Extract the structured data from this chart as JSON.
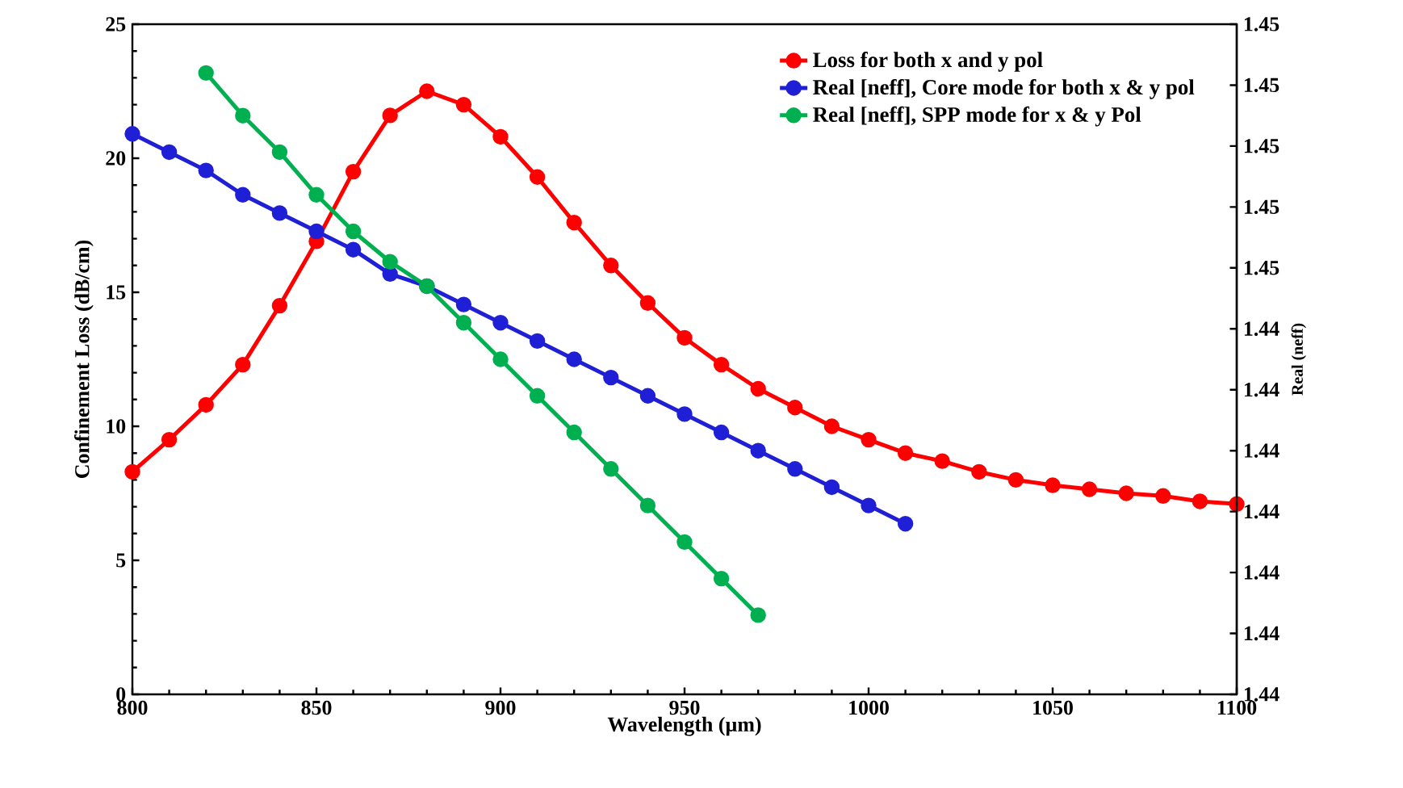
{
  "chart_data": {
    "type": "line",
    "xlabel": "Wavelength (µm)",
    "ylabel": "Confinement Loss (dB/cm)",
    "y2label": "Real (neff)",
    "xlim": [
      800,
      1100
    ],
    "xticks": [
      800,
      850,
      900,
      950,
      1000,
      1050,
      1100
    ],
    "ylim": [
      0,
      25
    ],
    "yticks": [
      0,
      5,
      10,
      15,
      20,
      25
    ],
    "y2lim": [
      1.438,
      1.449
    ],
    "y2ticks": [
      {
        "value": 1.438,
        "label": "1.44"
      },
      {
        "value": 1.439,
        "label": "1.44"
      },
      {
        "value": 1.44,
        "label": "1.44"
      },
      {
        "value": 1.441,
        "label": "1.44"
      },
      {
        "value": 1.442,
        "label": "1.44"
      },
      {
        "value": 1.443,
        "label": "1.44"
      },
      {
        "value": 1.444,
        "label": "1.44"
      },
      {
        "value": 1.445,
        "label": "1.45"
      },
      {
        "value": 1.446,
        "label": "1.45"
      },
      {
        "value": 1.447,
        "label": "1.45"
      },
      {
        "value": 1.448,
        "label": "1.45"
      },
      {
        "value": 1.449,
        "label": "1.45"
      }
    ],
    "marker": "circle",
    "line_style": "solid",
    "legend": "top right",
    "series": [
      {
        "name": "Loss for both x and y pol",
        "color": "#ff0000",
        "x": [
          800,
          810,
          820,
          830,
          840,
          850,
          860,
          870,
          880,
          890,
          900,
          910,
          920,
          930,
          940,
          950,
          960,
          970,
          980,
          990,
          1000,
          1010,
          1020,
          1030,
          1040,
          1050,
          1060,
          1070,
          1080,
          1090,
          1100
        ],
        "values": [
          8.3,
          9.5,
          10.8,
          12.3,
          14.5,
          16.9,
          19.5,
          21.6,
          22.5,
          22.0,
          20.8,
          19.3,
          17.6,
          16.0,
          14.6,
          13.3,
          12.3,
          11.4,
          10.7,
          10.0,
          9.5,
          9.0,
          8.7,
          8.3,
          8.0,
          7.8,
          7.65,
          7.5,
          7.4,
          7.2,
          7.1
        ]
      },
      {
        "name": "Real [neff], Core mode for both x & y pol",
        "color": "#1f1fd6",
        "axis": "y2",
        "x": [
          800,
          810,
          820,
          830,
          840,
          850,
          860,
          870,
          880,
          890,
          900,
          910,
          920,
          930,
          940,
          950,
          960,
          970,
          980,
          990,
          1000,
          1010
        ],
        "values": [
          1.4472,
          1.4469,
          1.4466,
          1.4462,
          1.4459,
          1.4456,
          1.4453,
          1.4449,
          1.4447,
          1.4444,
          1.4441,
          1.4438,
          1.4435,
          1.4432,
          1.4429,
          1.4426,
          1.4423,
          1.442,
          1.4417,
          1.4414,
          1.4411,
          1.4408
        ]
      },
      {
        "name": "Real [neff], SPP mode for x & y Pol",
        "color": "#00b050",
        "axis": "y2",
        "x": [
          820,
          830,
          840,
          850,
          860,
          870,
          880,
          890,
          900,
          910,
          920,
          930,
          940,
          950,
          960,
          970
        ],
        "values": [
          1.4482,
          1.4475,
          1.4469,
          1.4462,
          1.4456,
          1.4451,
          1.4447,
          1.4441,
          1.4435,
          1.4429,
          1.4423,
          1.4417,
          1.4411,
          1.4405,
          1.4399,
          1.4393
        ]
      }
    ]
  }
}
